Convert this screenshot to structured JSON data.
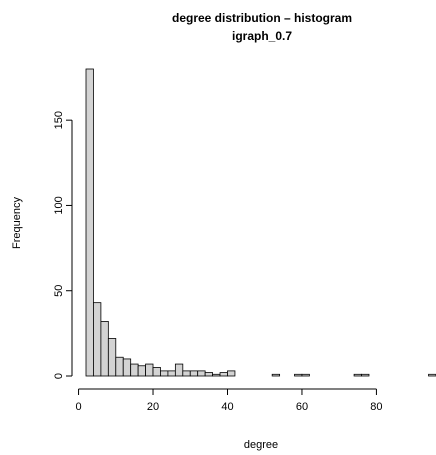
{
  "chart_data": {
    "type": "bar",
    "title": "degree distribution – histogram",
    "subtitle": "igraph_0.7",
    "xlabel": "degree",
    "ylabel": "Frequency",
    "bin_width": 2,
    "bin_start": 2,
    "xlim": [
      2,
      96
    ],
    "ylim": [
      0,
      180
    ],
    "x_ticks": [
      0,
      20,
      40,
      60,
      80
    ],
    "y_ticks": [
      0,
      50,
      100,
      150
    ],
    "values": [
      180,
      43,
      32,
      22,
      11,
      10,
      7,
      6,
      7,
      5,
      3,
      3,
      7,
      3,
      3,
      3,
      2,
      1,
      2,
      3,
      0,
      0,
      0,
      0,
      0,
      1,
      0,
      0,
      1,
      1,
      0,
      0,
      0,
      0,
      0,
      0,
      1,
      1,
      0,
      0,
      0,
      0,
      0,
      0,
      0,
      0,
      1
    ],
    "grid": false
  }
}
